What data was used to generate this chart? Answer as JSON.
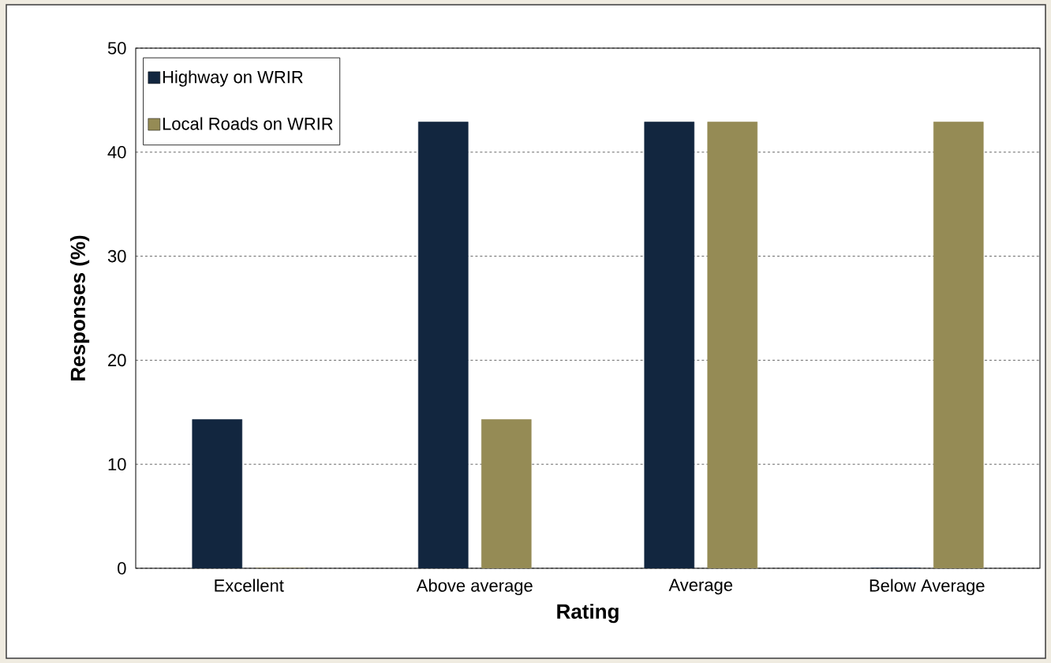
{
  "chart_data": {
    "type": "bar",
    "xlabel": "Rating",
    "ylabel": "Responses (%)",
    "categories": [
      "Excellent",
      "Above average",
      "Average",
      "Below Average"
    ],
    "series": [
      {
        "name": "Highway on WRIR",
        "color": "#12263f",
        "values": [
          14.3,
          42.9,
          42.9,
          0
        ]
      },
      {
        "name": "Local Roads on WRIR",
        "color": "#958b55",
        "values": [
          0,
          14.3,
          42.9,
          42.9
        ]
      }
    ],
    "ylim": [
      0,
      50
    ],
    "yticks": [
      0,
      10,
      20,
      30,
      40,
      50
    ],
    "grid": "y",
    "legend": "top left"
  }
}
